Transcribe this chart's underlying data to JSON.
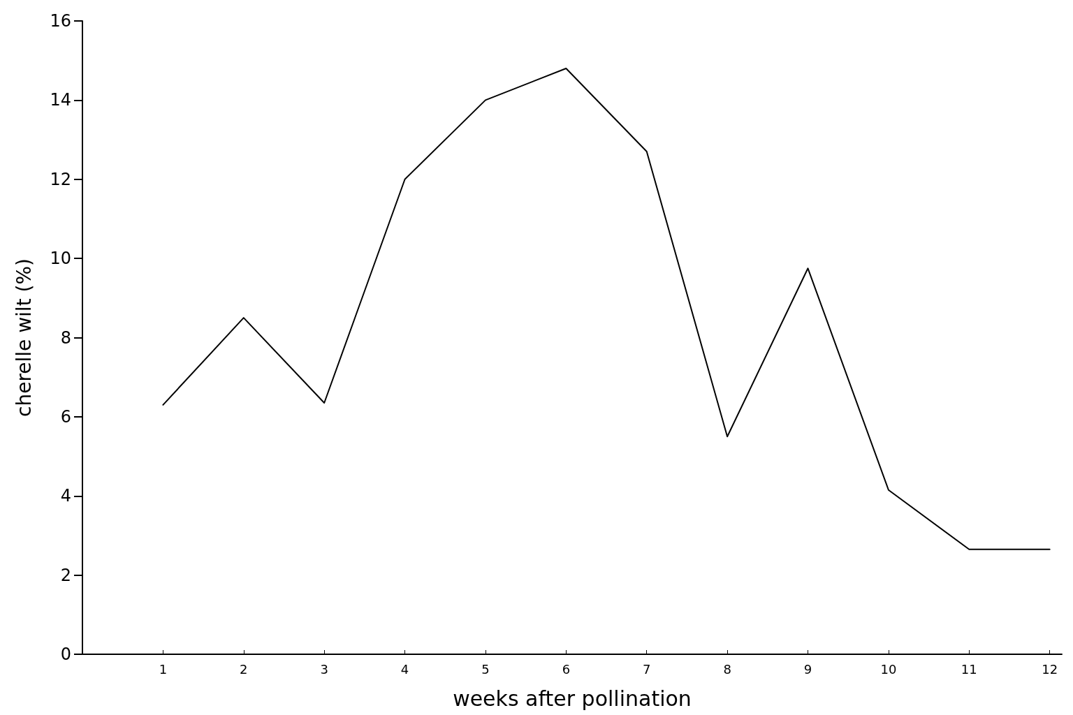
{
  "chart_data": {
    "type": "line",
    "xlabel": "weeks after pollination",
    "ylabel": "cherelle wilt (%)",
    "x": [
      1,
      2,
      3,
      4,
      5,
      6,
      7,
      8,
      9,
      10,
      11,
      12
    ],
    "series": [
      {
        "color": "#000000",
        "values": [
          6.3,
          8.5,
          6.35,
          12,
          14,
          14.8,
          12.7,
          5.5,
          9.75,
          4.15,
          2.65,
          2.65
        ]
      }
    ],
    "xlim": [
      0,
      12.15
    ],
    "xticks": [
      1,
      2,
      3,
      4,
      5,
      6,
      7,
      8,
      9,
      10,
      11,
      12
    ],
    "ylim": [
      0,
      16
    ],
    "yticks": [
      0,
      2,
      4,
      6,
      8,
      10,
      12,
      14,
      16
    ],
    "grid": false,
    "marker": "none",
    "line_style": "solid"
  }
}
